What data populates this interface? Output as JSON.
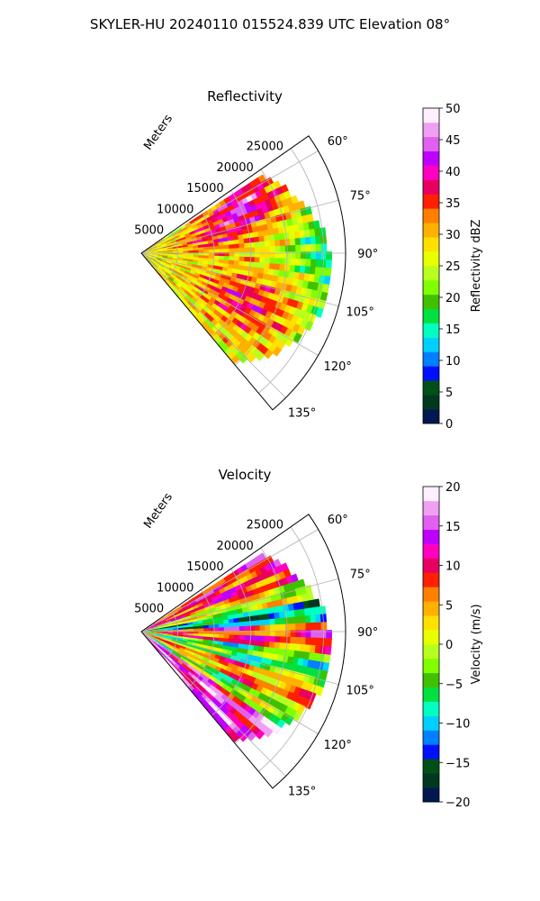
{
  "suptitle": "SKYLER-HU  20240110  015524.839 UTC Elevation 08°",
  "chart_data": [
    {
      "type": "heatmap",
      "projection": "polar-sector",
      "title": "Reflectivity",
      "range_label": "Meters",
      "range_ticks": [
        5000,
        10000,
        15000,
        20000,
        25000
      ],
      "range_tick_labels": [
        "5000",
        "10000",
        "15000",
        "20000",
        "25000"
      ],
      "rmax": 28000,
      "azimuth_range_deg": [
        55,
        140
      ],
      "azimuth_ticks": [
        60,
        75,
        90,
        105,
        120,
        135
      ],
      "azimuth_tick_labels": [
        "60°",
        "75°",
        "90°",
        "105°",
        "120°",
        "135°"
      ],
      "grid": true,
      "colorbar": {
        "label": "Reflectivity dBZ",
        "min": 0,
        "max": 50,
        "ticks": [
          0,
          5,
          10,
          15,
          20,
          25,
          30,
          35,
          40,
          45,
          50
        ],
        "tick_labels": [
          "0",
          "5",
          "10",
          "15",
          "20",
          "25",
          "30",
          "35",
          "40",
          "45",
          "50"
        ],
        "colors": [
          "#001850",
          "#003820",
          "#005018",
          "#0010ff",
          "#0080ff",
          "#00d0ff",
          "#00ffc0",
          "#00e040",
          "#40c000",
          "#80ff00",
          "#b8ff20",
          "#e8ff00",
          "#ffe000",
          "#ffb000",
          "#ff8000",
          "#ff2000",
          "#e80060",
          "#ff00c0",
          "#c000ff",
          "#e060f0",
          "#f0a0f0",
          "#fff0ff"
        ]
      },
      "field_model": {
        "base_value": 27,
        "features": [
          {
            "az": 65,
            "r": 0.55,
            "value": 42,
            "sigma": 0.13
          },
          {
            "az": 115,
            "r": 0.55,
            "value": 37,
            "sigma": 0.16
          },
          {
            "az": 78,
            "r": 0.35,
            "value": 35,
            "sigma": 0.14
          },
          {
            "az": 90,
            "r": 0.85,
            "value": 20,
            "sigma": 0.12
          }
        ]
      }
    },
    {
      "type": "heatmap",
      "projection": "polar-sector",
      "title": "Velocity",
      "range_label": "Meters",
      "range_ticks": [
        5000,
        10000,
        15000,
        20000,
        25000
      ],
      "range_tick_labels": [
        "5000",
        "10000",
        "15000",
        "20000",
        "25000"
      ],
      "rmax": 28000,
      "azimuth_range_deg": [
        55,
        140
      ],
      "azimuth_ticks": [
        60,
        75,
        90,
        105,
        120,
        135
      ],
      "azimuth_tick_labels": [
        "60°",
        "75°",
        "90°",
        "105°",
        "120°",
        "135°"
      ],
      "grid": true,
      "colorbar": {
        "label": "Velocity (m/s)",
        "min": -20,
        "max": 20,
        "ticks": [
          -20,
          -15,
          -10,
          -5,
          0,
          5,
          10,
          15,
          20
        ],
        "tick_labels": [
          "−20",
          "−15",
          "−10",
          "−5",
          "0",
          "5",
          "10",
          "15",
          "20"
        ],
        "colors": [
          "#001850",
          "#003820",
          "#005018",
          "#0010ff",
          "#0080ff",
          "#00d0ff",
          "#00ffc0",
          "#00e040",
          "#40c000",
          "#80ff00",
          "#b8ff20",
          "#e8ff00",
          "#ffe000",
          "#ffb000",
          "#ff8000",
          "#ff2000",
          "#e80060",
          "#ff00c0",
          "#c000ff",
          "#e060f0",
          "#f0a0f0",
          "#fff0ff"
        ]
      },
      "field_model": {
        "bands": [
          {
            "az_max": 72,
            "value": 9
          },
          {
            "az_max": 80,
            "value": 0
          },
          {
            "az_max": 88,
            "value": -10
          },
          {
            "az_max": 96,
            "value": 8
          },
          {
            "az_max": 106,
            "value": -5
          },
          {
            "az_max": 116,
            "value": 5
          },
          {
            "az_max": 124,
            "value": -3
          },
          {
            "az_max": 140,
            "value": 14
          }
        ]
      }
    }
  ]
}
